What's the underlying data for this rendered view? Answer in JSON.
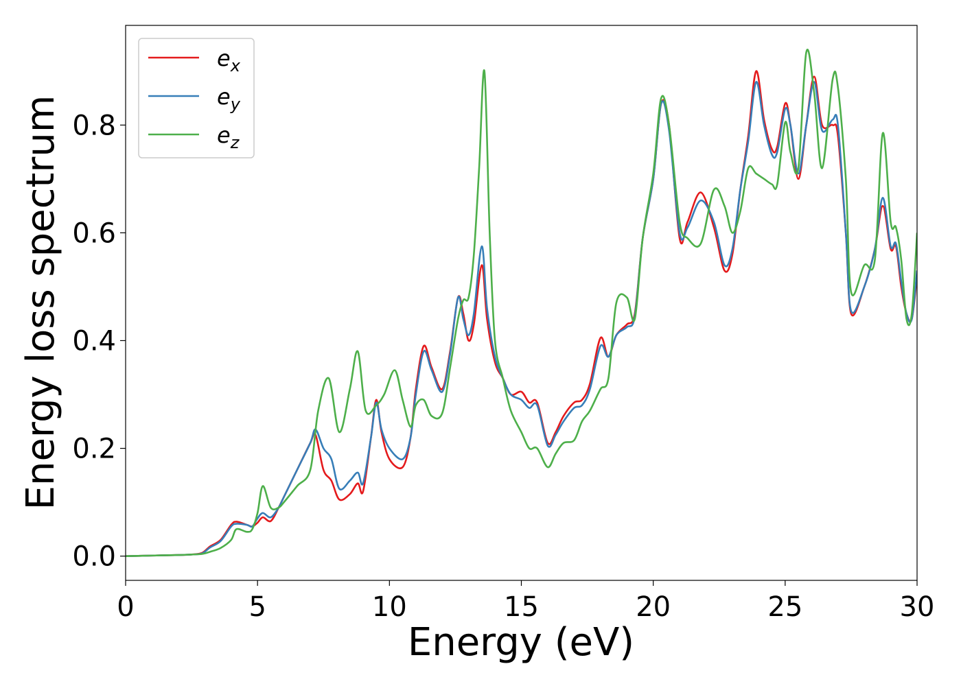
{
  "chart_data": {
    "type": "line",
    "title": "",
    "xlabel": "Energy (eV)",
    "ylabel": "Energy loss spectrum",
    "xlim": [
      0,
      30
    ],
    "ylim": [
      -0.045,
      0.985
    ],
    "xticks": [
      0,
      5,
      10,
      15,
      20,
      25,
      30
    ],
    "xtick_labels": [
      "0",
      "5",
      "10",
      "15",
      "20",
      "25",
      "30"
    ],
    "yticks": [
      0.0,
      0.2,
      0.4,
      0.6,
      0.8
    ],
    "ytick_labels": [
      "0.0",
      "0.2",
      "0.4",
      "0.6",
      "0.8"
    ],
    "grid": false,
    "legend_position": "top-left",
    "series": [
      {
        "name": "e",
        "subscript": "x",
        "color": "#e41a1c",
        "x": [
          0,
          1,
          2,
          2.5,
          2.9,
          3.2,
          3.6,
          4.0,
          4.2,
          4.6,
          4.8,
          5.0,
          5.2,
          5.5,
          5.8,
          6.0,
          6.5,
          7.0,
          7.2,
          7.5,
          7.8,
          8.1,
          8.5,
          8.8,
          9.0,
          9.3,
          9.5,
          9.7,
          10.0,
          10.5,
          10.8,
          11.0,
          11.3,
          11.6,
          12.0,
          12.3,
          12.6,
          12.8,
          13.0,
          13.2,
          13.5,
          13.7,
          14.0,
          14.3,
          14.6,
          15.0,
          15.3,
          15.6,
          16.0,
          16.3,
          16.6,
          17.0,
          17.3,
          17.6,
          18.0,
          18.3,
          18.6,
          19.0,
          19.3,
          19.6,
          20.0,
          20.3,
          20.6,
          21.0,
          21.3,
          21.8,
          22.3,
          22.7,
          23.0,
          23.3,
          23.6,
          23.9,
          24.2,
          24.5,
          24.7,
          25.0,
          25.2,
          25.5,
          25.8,
          26.1,
          26.4,
          26.8,
          27.0,
          27.3,
          27.5,
          28.0,
          28.4,
          28.7,
          29.0,
          29.2,
          29.4,
          29.6,
          29.8,
          30.0
        ],
        "y": [
          0.0,
          0.001,
          0.002,
          0.003,
          0.006,
          0.018,
          0.03,
          0.058,
          0.064,
          0.058,
          0.055,
          0.062,
          0.072,
          0.065,
          0.09,
          0.11,
          0.16,
          0.21,
          0.225,
          0.16,
          0.14,
          0.105,
          0.115,
          0.135,
          0.12,
          0.22,
          0.29,
          0.23,
          0.18,
          0.165,
          0.22,
          0.31,
          0.39,
          0.35,
          0.31,
          0.38,
          0.48,
          0.45,
          0.4,
          0.43,
          0.54,
          0.44,
          0.36,
          0.33,
          0.3,
          0.305,
          0.285,
          0.285,
          0.21,
          0.23,
          0.26,
          0.285,
          0.29,
          0.32,
          0.405,
          0.37,
          0.41,
          0.43,
          0.45,
          0.59,
          0.7,
          0.84,
          0.8,
          0.59,
          0.62,
          0.675,
          0.61,
          0.53,
          0.56,
          0.68,
          0.78,
          0.9,
          0.81,
          0.755,
          0.76,
          0.84,
          0.8,
          0.7,
          0.8,
          0.89,
          0.8,
          0.8,
          0.78,
          0.6,
          0.45,
          0.5,
          0.57,
          0.65,
          0.57,
          0.575,
          0.5,
          0.45,
          0.44,
          0.52
        ]
      },
      {
        "name": "e",
        "subscript": "y",
        "color": "#377eb8",
        "x": [
          0,
          1,
          2,
          2.5,
          2.9,
          3.2,
          3.6,
          4.0,
          4.2,
          4.6,
          4.8,
          5.0,
          5.2,
          5.5,
          5.8,
          6.0,
          6.5,
          7.0,
          7.2,
          7.5,
          7.8,
          8.1,
          8.5,
          8.8,
          9.0,
          9.3,
          9.5,
          9.7,
          10.0,
          10.5,
          10.8,
          11.0,
          11.3,
          11.6,
          12.0,
          12.3,
          12.6,
          12.8,
          13.0,
          13.2,
          13.5,
          13.7,
          14.0,
          14.3,
          14.6,
          15.0,
          15.3,
          15.6,
          16.0,
          16.3,
          16.6,
          17.0,
          17.3,
          17.6,
          18.0,
          18.3,
          18.6,
          19.0,
          19.3,
          19.6,
          20.0,
          20.3,
          20.6,
          21.0,
          21.3,
          21.8,
          22.3,
          22.7,
          23.0,
          23.3,
          23.6,
          23.9,
          24.2,
          24.5,
          24.7,
          25.0,
          25.2,
          25.5,
          25.8,
          26.1,
          26.4,
          26.8,
          27.0,
          27.3,
          27.5,
          28.0,
          28.4,
          28.7,
          29.0,
          29.2,
          29.4,
          29.6,
          29.8,
          30.0
        ],
        "y": [
          0.0,
          0.001,
          0.002,
          0.003,
          0.005,
          0.016,
          0.028,
          0.055,
          0.06,
          0.058,
          0.055,
          0.07,
          0.08,
          0.072,
          0.09,
          0.11,
          0.16,
          0.21,
          0.235,
          0.2,
          0.18,
          0.125,
          0.14,
          0.155,
          0.135,
          0.22,
          0.285,
          0.235,
          0.2,
          0.18,
          0.22,
          0.3,
          0.38,
          0.345,
          0.305,
          0.375,
          0.48,
          0.44,
          0.41,
          0.45,
          0.575,
          0.46,
          0.37,
          0.33,
          0.3,
          0.29,
          0.275,
          0.28,
          0.205,
          0.225,
          0.25,
          0.275,
          0.28,
          0.31,
          0.39,
          0.37,
          0.41,
          0.425,
          0.445,
          0.59,
          0.7,
          0.84,
          0.79,
          0.6,
          0.61,
          0.66,
          0.62,
          0.54,
          0.57,
          0.68,
          0.77,
          0.88,
          0.8,
          0.745,
          0.75,
          0.83,
          0.8,
          0.71,
          0.8,
          0.88,
          0.79,
          0.81,
          0.8,
          0.6,
          0.455,
          0.5,
          0.57,
          0.665,
          0.575,
          0.58,
          0.51,
          0.45,
          0.44,
          0.53
        ]
      },
      {
        "name": "e",
        "subscript": "z",
        "color": "#4daf4a",
        "x": [
          0,
          1,
          2,
          2.5,
          2.9,
          3.2,
          3.6,
          4.0,
          4.2,
          4.6,
          4.8,
          5.0,
          5.2,
          5.5,
          5.8,
          6.0,
          6.5,
          7.0,
          7.3,
          7.7,
          8.1,
          8.5,
          8.8,
          9.1,
          9.5,
          9.8,
          10.2,
          10.5,
          10.8,
          11.0,
          11.3,
          11.6,
          12.0,
          12.3,
          12.6,
          12.8,
          13.0,
          13.2,
          13.4,
          13.6,
          13.8,
          14.0,
          14.3,
          14.6,
          15.0,
          15.3,
          15.6,
          16.0,
          16.3,
          16.6,
          17.0,
          17.3,
          17.6,
          18.0,
          18.3,
          18.6,
          19.0,
          19.3,
          19.6,
          20.0,
          20.3,
          20.6,
          21.0,
          21.3,
          21.8,
          22.3,
          22.7,
          23.0,
          23.3,
          23.6,
          23.9,
          24.2,
          24.5,
          24.7,
          25.0,
          25.2,
          25.5,
          25.8,
          26.1,
          26.4,
          26.8,
          27.0,
          27.3,
          27.5,
          28.0,
          28.4,
          28.7,
          29.0,
          29.2,
          29.4,
          29.6,
          29.8,
          30.0
        ],
        "y": [
          0.0,
          0.001,
          0.002,
          0.003,
          0.004,
          0.008,
          0.015,
          0.03,
          0.05,
          0.045,
          0.05,
          0.08,
          0.13,
          0.09,
          0.09,
          0.1,
          0.13,
          0.16,
          0.27,
          0.33,
          0.23,
          0.31,
          0.38,
          0.27,
          0.28,
          0.3,
          0.345,
          0.29,
          0.24,
          0.28,
          0.29,
          0.26,
          0.265,
          0.35,
          0.44,
          0.475,
          0.48,
          0.56,
          0.72,
          0.9,
          0.6,
          0.4,
          0.33,
          0.27,
          0.23,
          0.2,
          0.2,
          0.165,
          0.19,
          0.21,
          0.215,
          0.25,
          0.27,
          0.31,
          0.33,
          0.47,
          0.48,
          0.44,
          0.59,
          0.71,
          0.85,
          0.8,
          0.62,
          0.59,
          0.58,
          0.68,
          0.65,
          0.6,
          0.64,
          0.72,
          0.71,
          0.7,
          0.69,
          0.69,
          0.805,
          0.75,
          0.72,
          0.935,
          0.86,
          0.72,
          0.885,
          0.87,
          0.7,
          0.49,
          0.54,
          0.55,
          0.785,
          0.62,
          0.61,
          0.55,
          0.44,
          0.45,
          0.6
        ]
      }
    ]
  }
}
